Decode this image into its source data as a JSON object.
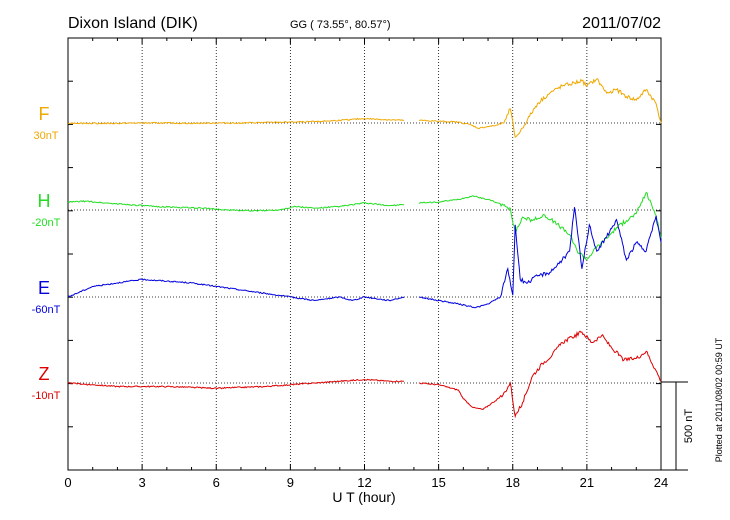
{
  "header": {
    "station": "Dixon Island (DIK)",
    "coords": "GG ( 73.55°,  80.57°)",
    "date": "2011/07/02"
  },
  "footer": {
    "plotted": "Plotted at 2011/08/02 00:59 UT",
    "scale_label": "500 nT"
  },
  "colors": {
    "F": "#f0a800",
    "H": "#22dd22",
    "E": "#0000dd",
    "Z": "#dd0000"
  },
  "chart_data": {
    "type": "line",
    "xlabel": "U T (hour)",
    "xlim": [
      0,
      24
    ],
    "xticks": [
      "0",
      "3",
      "6",
      "9",
      "12",
      "15",
      "18",
      "21",
      "24"
    ],
    "grid": true,
    "units": "nT",
    "scale_bar_nT": 500,
    "series": [
      {
        "name": "F",
        "baseline_label": "30nT",
        "baseline": 30,
        "x": [
          0,
          1,
          2,
          3,
          4,
          5,
          6,
          7,
          8,
          9,
          10,
          11,
          12,
          13,
          13.6,
          null,
          14.2,
          15,
          15.8,
          16.3,
          16.6,
          17,
          17.3,
          17.6,
          17.9,
          18.1,
          18.3,
          18.6,
          19,
          19.5,
          20,
          20.3,
          20.8,
          21,
          21.4,
          21.8,
          22.2,
          22.6,
          23,
          23.4,
          23.8,
          24
        ],
        "y": [
          30,
          28,
          28,
          30,
          30,
          28,
          30,
          30,
          33,
          35,
          38,
          45,
          55,
          48,
          45,
          null,
          45,
          40,
          35,
          20,
          0,
          10,
          15,
          30,
          110,
          -50,
          -20,
          50,
          140,
          200,
          240,
          250,
          270,
          240,
          280,
          200,
          220,
          180,
          160,
          220,
          140,
          30
        ]
      },
      {
        "name": "H",
        "baseline_label": "-20nT",
        "baseline": -20,
        "x": [
          0,
          0.7,
          1.5,
          2.5,
          3.5,
          4.5,
          5.5,
          6.5,
          7.5,
          8.5,
          9.2,
          10,
          11,
          12,
          13,
          13.6,
          null,
          14.2,
          15,
          15.8,
          16.4,
          17,
          17.4,
          17.7,
          17.9,
          18.1,
          18.4,
          18.8,
          19.3,
          19.8,
          20.3,
          20.6,
          21,
          21.4,
          21.8,
          22.2,
          22.6,
          23,
          23.4,
          23.8,
          24
        ],
        "y": [
          25,
          30,
          20,
          10,
          0,
          -5,
          -10,
          -20,
          -25,
          -20,
          0,
          -10,
          0,
          20,
          5,
          10,
          null,
          20,
          25,
          40,
          60,
          40,
          20,
          0,
          -10,
          -150,
          -60,
          -80,
          -50,
          -100,
          -160,
          -250,
          -300,
          -230,
          -180,
          -120,
          -80,
          -40,
          80,
          -50,
          -180
        ]
      },
      {
        "name": "E",
        "baseline_label": "-60nT",
        "baseline": -60,
        "x": [
          0,
          1,
          2,
          3,
          4,
          5,
          6,
          7,
          8,
          9,
          10,
          11,
          11.5,
          12,
          13,
          13.6,
          null,
          14.2,
          15,
          15.8,
          16.5,
          17,
          17.5,
          17.8,
          18,
          18.1,
          18.3,
          18.6,
          19,
          19.5,
          20,
          20.3,
          20.5,
          20.8,
          21.1,
          21.4,
          21.8,
          22.2,
          22.6,
          23,
          23.4,
          23.8,
          24
        ],
        "y": [
          -60,
          0,
          20,
          40,
          30,
          20,
          0,
          -20,
          -40,
          -60,
          -80,
          -60,
          -80,
          -60,
          -80,
          -60,
          null,
          -60,
          -80,
          -100,
          -120,
          -100,
          -60,
          100,
          -50,
          350,
          40,
          20,
          60,
          80,
          150,
          200,
          450,
          100,
          350,
          200,
          280,
          380,
          150,
          250,
          200,
          400,
          250
        ]
      },
      {
        "name": "Z",
        "baseline_label": "-10nT",
        "baseline": -10,
        "x": [
          0,
          1,
          2,
          3,
          4,
          5,
          6,
          7,
          8,
          9,
          10,
          11,
          12,
          13,
          13.6,
          null,
          14.2,
          15,
          15.8,
          16,
          16.4,
          16.8,
          17.2,
          17.6,
          17.9,
          18.1,
          18.4,
          18.8,
          19.2,
          19.6,
          20,
          20.4,
          20.8,
          21.2,
          21.6,
          22,
          22.5,
          23,
          23.4,
          23.8,
          24
        ],
        "y": [
          -10,
          -20,
          -30,
          -30,
          -30,
          -35,
          -40,
          -35,
          -30,
          -20,
          -10,
          0,
          10,
          0,
          0,
          null,
          -10,
          -20,
          -50,
          -100,
          -150,
          -160,
          -120,
          -80,
          -10,
          -200,
          -120,
          30,
          100,
          150,
          220,
          250,
          280,
          220,
          260,
          190,
          120,
          130,
          170,
          60,
          0
        ]
      }
    ]
  }
}
